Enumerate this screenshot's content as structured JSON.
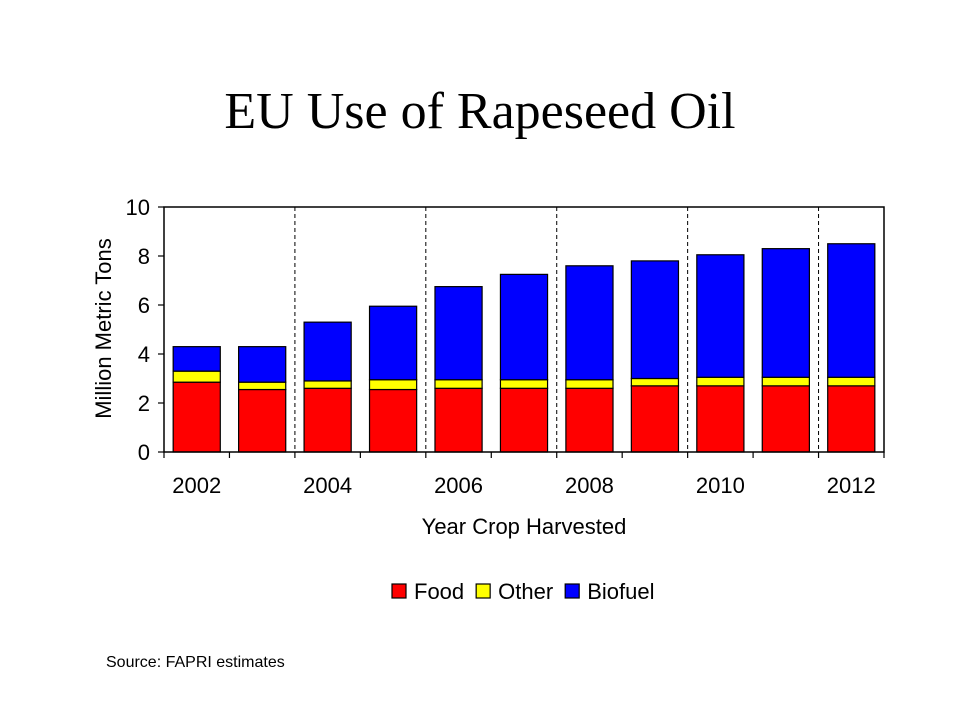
{
  "chart_data": {
    "type": "bar",
    "stacked": true,
    "title": "EU Use of Rapeseed Oil",
    "xlabel": "Year Crop Harvested",
    "ylabel": "Million Metric Tons",
    "ylim": [
      0,
      10
    ],
    "yticks": [
      "0",
      "2",
      "4",
      "6",
      "8",
      "10"
    ],
    "xtick_labels": [
      "2002",
      "2004",
      "2006",
      "2008",
      "2010",
      "2012"
    ],
    "categories": [
      "2002",
      "2003",
      "2004",
      "2005",
      "2006",
      "2007",
      "2008",
      "2009",
      "2010",
      "2011",
      "2012"
    ],
    "series": [
      {
        "name": "Food",
        "color": "#ff0000",
        "values": [
          2.85,
          2.55,
          2.6,
          2.55,
          2.6,
          2.6,
          2.6,
          2.7,
          2.7,
          2.7,
          2.7
        ]
      },
      {
        "name": "Other",
        "color": "#ffff00",
        "values": [
          0.45,
          0.3,
          0.3,
          0.4,
          0.35,
          0.35,
          0.35,
          0.3,
          0.35,
          0.35,
          0.35
        ]
      },
      {
        "name": "Biofuel",
        "color": "#0000ff",
        "values": [
          1.0,
          1.45,
          2.4,
          3.0,
          3.8,
          4.3,
          4.65,
          4.8,
          5.0,
          5.25,
          5.45
        ]
      }
    ],
    "grid": "dashed-vertical",
    "legend": "bottom",
    "source": "Source: FAPRI estimates"
  }
}
